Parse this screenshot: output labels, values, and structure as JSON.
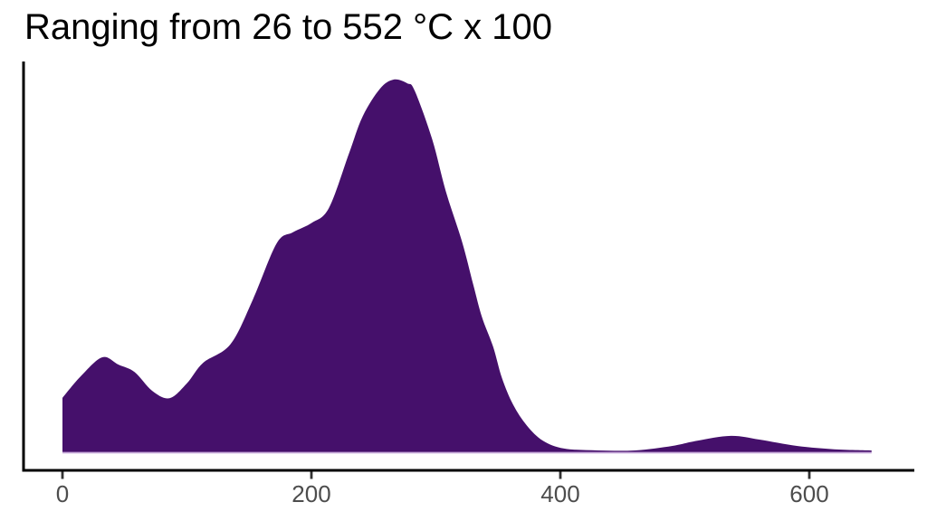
{
  "title": "Ranging from 26 to 552 °C x 100",
  "chart_data": {
    "type": "area",
    "subtype": "density",
    "title": "Ranging from 26 to 552 °C x 100",
    "xlabel": "",
    "ylabel": "",
    "xlim": [
      0,
      650
    ],
    "ylim": [
      0,
      1
    ],
    "grid": false,
    "legend": false,
    "x_ticks": [
      0,
      200,
      400,
      600
    ],
    "y_ticks": [],
    "series": [
      {
        "name": "density",
        "points": [
          [
            0,
            0.146
          ],
          [
            15,
            0.205
          ],
          [
            32,
            0.255
          ],
          [
            45,
            0.235
          ],
          [
            58,
            0.215
          ],
          [
            72,
            0.165
          ],
          [
            86,
            0.145
          ],
          [
            100,
            0.185
          ],
          [
            113,
            0.24
          ],
          [
            135,
            0.29
          ],
          [
            153,
            0.41
          ],
          [
            172,
            0.56
          ],
          [
            185,
            0.59
          ],
          [
            200,
            0.615
          ],
          [
            214,
            0.655
          ],
          [
            230,
            0.8
          ],
          [
            241,
            0.9
          ],
          [
            255,
            0.975
          ],
          [
            266,
            1.0
          ],
          [
            277,
            0.99
          ],
          [
            283,
            0.97
          ],
          [
            297,
            0.84
          ],
          [
            308,
            0.7
          ],
          [
            321,
            0.565
          ],
          [
            330,
            0.45
          ],
          [
            337,
            0.363
          ],
          [
            346,
            0.283
          ],
          [
            353,
            0.2
          ],
          [
            362,
            0.128
          ],
          [
            373,
            0.072
          ],
          [
            386,
            0.031
          ],
          [
            403,
            0.01
          ],
          [
            430,
            0.005
          ],
          [
            460,
            0.005
          ],
          [
            490,
            0.017
          ],
          [
            510,
            0.031
          ],
          [
            537,
            0.044
          ],
          [
            560,
            0.034
          ],
          [
            590,
            0.017
          ],
          [
            620,
            0.008
          ],
          [
            650,
            0.005
          ]
        ]
      }
    ],
    "annotations": []
  },
  "colors": {
    "fill": "#45106B",
    "baseline_edge": "#C9ABDB",
    "axis_line": "#000000",
    "tick_mark": "#333333",
    "tick_label": "#4D4D4D",
    "title_text": "#000000",
    "background": "#FFFFFF"
  }
}
